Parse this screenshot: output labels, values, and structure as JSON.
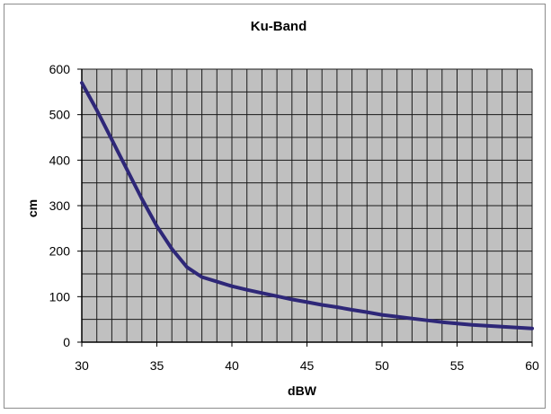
{
  "chart_data": {
    "type": "line",
    "title": "Ku-Band",
    "xlabel": "dBW",
    "ylabel": "cm",
    "xlim": [
      30,
      60
    ],
    "ylim": [
      0,
      600
    ],
    "x_ticks": [
      "30",
      "35",
      "40",
      "45",
      "50",
      "55",
      "60"
    ],
    "y_ticks": [
      "0",
      "100",
      "200",
      "300",
      "400",
      "500",
      "600"
    ],
    "x_grid_step": 1,
    "y_grid_step": 50,
    "grid": true,
    "legend": "none",
    "colors": {
      "line": "#2e2778",
      "plot_bg": "#c0c0c0",
      "grid": "#1a1a1a"
    },
    "series": [
      {
        "x": [
          30,
          31,
          32,
          33,
          34,
          35,
          36,
          37,
          38,
          39,
          40,
          41,
          42,
          43,
          44,
          45,
          46,
          47,
          48,
          49,
          50,
          51,
          52,
          53,
          54,
          55,
          56,
          57,
          58,
          59,
          60
        ],
        "values": [
          570,
          510,
          445,
          380,
          315,
          255,
          205,
          165,
          143,
          133,
          123,
          115,
          108,
          101,
          94,
          88,
          82,
          77,
          71,
          66,
          60,
          56,
          52,
          48,
          44,
          41,
          38,
          36,
          34,
          32,
          30
        ]
      }
    ]
  }
}
